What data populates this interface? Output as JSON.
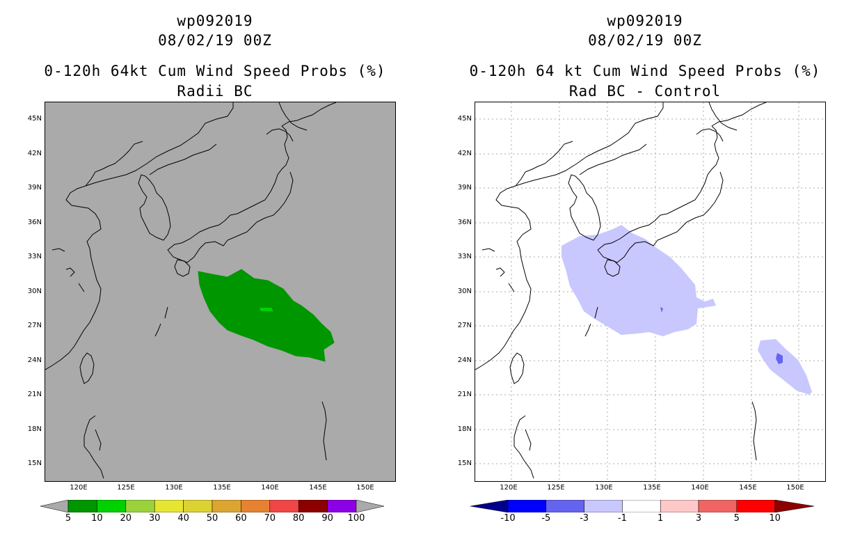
{
  "left_panel": {
    "titles": [
      "wp092019",
      "08/02/19 00Z",
      "0-120h 64kt Cum Wind Speed Probs (%)",
      "Radii BC"
    ],
    "colorbar_labels": [
      "5",
      "10",
      "20",
      "30",
      "40",
      "50",
      "60",
      "70",
      "80",
      "90",
      "100"
    ],
    "colorbar_colors": [
      "#009600",
      "#00d200",
      "#9bd23c",
      "#e6e632",
      "#dcd232",
      "#dca532",
      "#e68232",
      "#f04646",
      "#8c0000",
      "#8c00e6"
    ],
    "background_color": "#aaaaaa"
  },
  "right_panel": {
    "titles": [
      "wp092019",
      "08/02/19 00Z",
      "0-120h 64 kt Cum Wind Speed Probs (%)",
      "Rad BC - Control"
    ],
    "colorbar_labels": [
      "-10",
      "-5",
      "-3",
      "-1",
      "1",
      "3",
      "5",
      "10"
    ],
    "colorbar_colors": [
      "#0000ff",
      "#6464f0",
      "#c8c8ff",
      "#ffffff",
      "#ffc8c8",
      "#f06464",
      "#ff0000"
    ],
    "colorbar_end_colors": [
      "#00008c",
      "#8c0000"
    ]
  },
  "lat_labels": [
    "45N",
    "42N",
    "39N",
    "36N",
    "33N",
    "30N",
    "27N",
    "24N",
    "21N",
    "18N",
    "15N"
  ],
  "lon_labels": [
    "120E",
    "125E",
    "130E",
    "135E",
    "140E",
    "145E",
    "150E"
  ]
}
